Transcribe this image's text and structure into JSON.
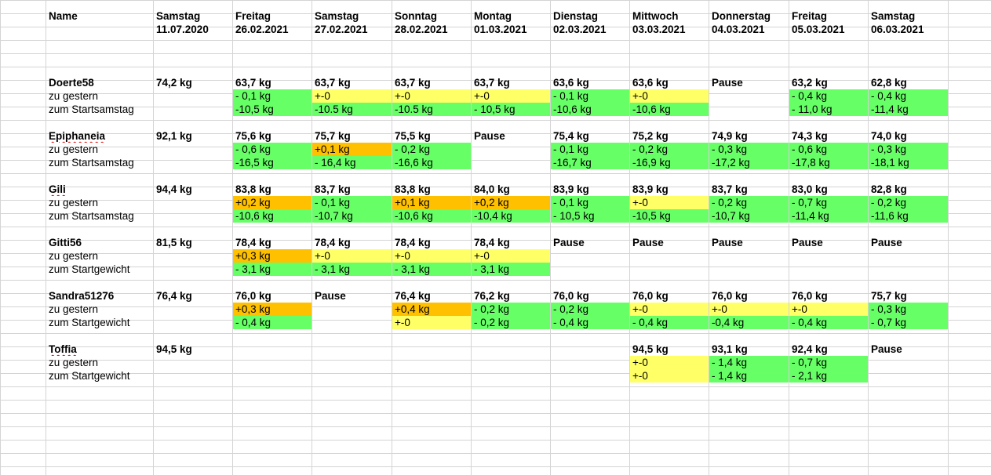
{
  "header": {
    "name_label": "Name",
    "days": [
      {
        "day": "Samstag",
        "date": "11.07.2020"
      },
      {
        "day": "Freitag",
        "date": "26.02.2021"
      },
      {
        "day": "Samstag",
        "date": "27.02.2021"
      },
      {
        "day": "Sonntag",
        "date": "28.02.2021"
      },
      {
        "day": "Montag",
        "date": "01.03.2021"
      },
      {
        "day": "Dienstag",
        "date": "02.03.2021"
      },
      {
        "day": "Mittwoch",
        "date": "03.03.2021"
      },
      {
        "day": "Donnerstag",
        "date": "04.03.2021"
      },
      {
        "day": "Freitag",
        "date": "05.03.2021"
      },
      {
        "day": "Samstag",
        "date": "06.03.2021"
      }
    ]
  },
  "colors": {
    "green": "#66ff66",
    "yellow": "#ffff66",
    "orange": "#ffc000",
    "grid": "#d4d4d4"
  },
  "blocks": [
    {
      "name": "Doerte58",
      "spell": false,
      "weights": [
        "74,2 kg",
        "63,7 kg",
        "63,7 kg",
        "63,7 kg",
        "63,7 kg",
        "63,6 kg",
        "63,6 kg",
        "Pause",
        "63,2 kg",
        "62,8 kg"
      ],
      "rows": [
        {
          "label": "zu gestern",
          "cells": [
            null,
            {
              "v": "- 0,1 kg",
              "c": "green"
            },
            {
              "v": "+-0",
              "c": "yellow"
            },
            {
              "v": "+-0",
              "c": "yellow"
            },
            {
              "v": "+-0",
              "c": "yellow"
            },
            {
              "v": "- 0,1 kg",
              "c": "green"
            },
            {
              "v": "+-0",
              "c": "yellow"
            },
            null,
            {
              "v": "- 0,4 kg",
              "c": "green"
            },
            {
              "v": "- 0,4 kg",
              "c": "green"
            }
          ]
        },
        {
          "label": "zum Startsamstag",
          "cells": [
            null,
            {
              "v": "-10,5 kg",
              "c": "green"
            },
            {
              "v": "-10.5 kg",
              "c": "green"
            },
            {
              "v": "-10.5 kg",
              "c": "green"
            },
            {
              "v": "- 10,5 kg",
              "c": "green"
            },
            {
              "v": "-10,6 kg",
              "c": "green"
            },
            {
              "v": "-10,6 kg",
              "c": "green"
            },
            null,
            {
              "v": "- 11,0 kg",
              "c": "green"
            },
            {
              "v": "-11,4 kg",
              "c": "green"
            }
          ]
        }
      ]
    },
    {
      "name": "Epiphaneia",
      "spell": true,
      "weights": [
        "92,1 kg",
        "75,6 kg",
        "75,7 kg",
        "75,5 kg",
        "Pause",
        "75,4 kg",
        "75,2 kg",
        "74,9 kg",
        "74,3 kg",
        "74,0 kg"
      ],
      "rows": [
        {
          "label": "zu gestern",
          "cells": [
            null,
            {
              "v": "- 0,6 kg",
              "c": "green"
            },
            {
              "v": "+0,1 kg",
              "c": "orange"
            },
            {
              "v": "- 0,2 kg",
              "c": "green"
            },
            null,
            {
              "v": "- 0,1 kg",
              "c": "green"
            },
            {
              "v": "- 0,2 kg",
              "c": "green"
            },
            {
              "v": "- 0,3 kg",
              "c": "green"
            },
            {
              "v": "- 0,6 kg",
              "c": "green"
            },
            {
              "v": "- 0,3 kg",
              "c": "green"
            }
          ]
        },
        {
          "label": "zum Startsamstag",
          "cells": [
            null,
            {
              "v": "-16,5 kg",
              "c": "green"
            },
            {
              "v": "- 16,4 kg",
              "c": "green"
            },
            {
              "v": "-16,6 kg",
              "c": "green"
            },
            null,
            {
              "v": "-16,7 kg",
              "c": "green"
            },
            {
              "v": "-16,9 kg",
              "c": "green"
            },
            {
              "v": "-17,2 kg",
              "c": "green"
            },
            {
              "v": "-17,8 kg",
              "c": "green"
            },
            {
              "v": "-18,1 kg",
              "c": "green"
            }
          ]
        }
      ]
    },
    {
      "name": "Gili",
      "spell": true,
      "weights": [
        "94,4 kg",
        "83,8 kg",
        "83,7 kg",
        "83,8 kg",
        "84,0 kg",
        "83,9 kg",
        "83,9 kg",
        "83,7 kg",
        "83,0 kg",
        "82,8 kg"
      ],
      "rows": [
        {
          "label": "zu gestern",
          "cells": [
            null,
            {
              "v": "+0,2 kg",
              "c": "orange"
            },
            {
              "v": "- 0,1 kg",
              "c": "green"
            },
            {
              "v": "+0,1 kg",
              "c": "orange"
            },
            {
              "v": "+0,2 kg",
              "c": "orange"
            },
            {
              "v": "- 0,1 kg",
              "c": "green"
            },
            {
              "v": "+-0",
              "c": "yellow"
            },
            {
              "v": "- 0,2 kg",
              "c": "green"
            },
            {
              "v": "- 0,7 kg",
              "c": "green"
            },
            {
              "v": "- 0,2 kg",
              "c": "green"
            }
          ]
        },
        {
          "label": "zum Startsamstag",
          "cells": [
            null,
            {
              "v": "-10,6 kg",
              "c": "green"
            },
            {
              "v": "-10,7 kg",
              "c": "green"
            },
            {
              "v": "-10,6 kg",
              "c": "green"
            },
            {
              "v": "-10,4 kg",
              "c": "green"
            },
            {
              "v": "- 10,5 kg",
              "c": "green"
            },
            {
              "v": "-10,5 kg",
              "c": "green"
            },
            {
              "v": "-10,7 kg",
              "c": "green"
            },
            {
              "v": "-11,4 kg",
              "c": "green"
            },
            {
              "v": "-11,6 kg",
              "c": "green"
            }
          ]
        }
      ]
    },
    {
      "name": "Gitti56",
      "spell": false,
      "weights": [
        "81,5 kg",
        "78,4 kg",
        "78,4 kg",
        "78,4 kg",
        "78,4 kg",
        "Pause",
        "Pause",
        "Pause",
        "Pause",
        "Pause"
      ],
      "rows": [
        {
          "label": "zu gestern",
          "cells": [
            null,
            {
              "v": "+0,3 kg",
              "c": "orange"
            },
            {
              "v": "+-0",
              "c": "yellow"
            },
            {
              "v": "+-0",
              "c": "yellow"
            },
            {
              "v": "+-0",
              "c": "yellow"
            },
            null,
            null,
            null,
            null,
            null
          ]
        },
        {
          "label": "zum Startgewicht",
          "cells": [
            null,
            {
              "v": "- 3,1 kg",
              "c": "green"
            },
            {
              "v": "- 3,1 kg",
              "c": "green"
            },
            {
              "v": "- 3,1 kg",
              "c": "green"
            },
            {
              "v": "- 3,1 kg",
              "c": "green"
            },
            null,
            null,
            null,
            null,
            null
          ]
        }
      ]
    },
    {
      "name": "Sandra51276",
      "spell": false,
      "weights": [
        "76,4 kg",
        "76,0 kg",
        "Pause",
        "76,4 kg",
        "76,2 kg",
        "76,0 kg",
        "76,0 kg",
        "76,0 kg",
        "76,0 kg",
        "75,7 kg"
      ],
      "rows": [
        {
          "label": "zu gestern",
          "cells": [
            null,
            {
              "v": "+0,3 kg",
              "c": "orange"
            },
            null,
            {
              "v": "+0,4 kg",
              "c": "orange"
            },
            {
              "v": "- 0,2 kg",
              "c": "green"
            },
            {
              "v": "- 0,2 kg",
              "c": "green"
            },
            {
              "v": "+-0",
              "c": "yellow"
            },
            {
              "v": "+-0",
              "c": "yellow"
            },
            {
              "v": "+-0",
              "c": "yellow"
            },
            {
              "v": "- 0,3 kg",
              "c": "green"
            }
          ]
        },
        {
          "label": "zum Startgewicht",
          "cells": [
            null,
            {
              "v": "- 0,4 kg",
              "c": "green"
            },
            null,
            {
              "v": "+-0",
              "c": "yellow"
            },
            {
              "v": "- 0,2 kg",
              "c": "green"
            },
            {
              "v": "- 0,4 kg",
              "c": "green"
            },
            {
              "v": "- 0,4 kg",
              "c": "green"
            },
            {
              "v": "-0,4 kg",
              "c": "green"
            },
            {
              "v": "- 0,4 kg",
              "c": "green"
            },
            {
              "v": "- 0,7 kg",
              "c": "green"
            }
          ]
        }
      ]
    },
    {
      "name": "Toffia",
      "spell": true,
      "weights": [
        "94,5 kg",
        null,
        null,
        null,
        null,
        null,
        "94,5 kg",
        "93,1 kg",
        "92,4 kg",
        "Pause"
      ],
      "rows": [
        {
          "label": "zu gestern",
          "cells": [
            null,
            null,
            null,
            null,
            null,
            null,
            {
              "v": "+-0",
              "c": "yellow"
            },
            {
              "v": "- 1,4 kg",
              "c": "green"
            },
            {
              "v": "- 0,7 kg",
              "c": "green"
            },
            null
          ]
        },
        {
          "label": "zum Startgewicht",
          "cells": [
            null,
            null,
            null,
            null,
            null,
            null,
            {
              "v": "+-0",
              "c": "yellow"
            },
            {
              "v": "- 1,4 kg",
              "c": "green"
            },
            {
              "v": "- 2,1 kg",
              "c": "green"
            },
            null
          ]
        }
      ]
    }
  ]
}
